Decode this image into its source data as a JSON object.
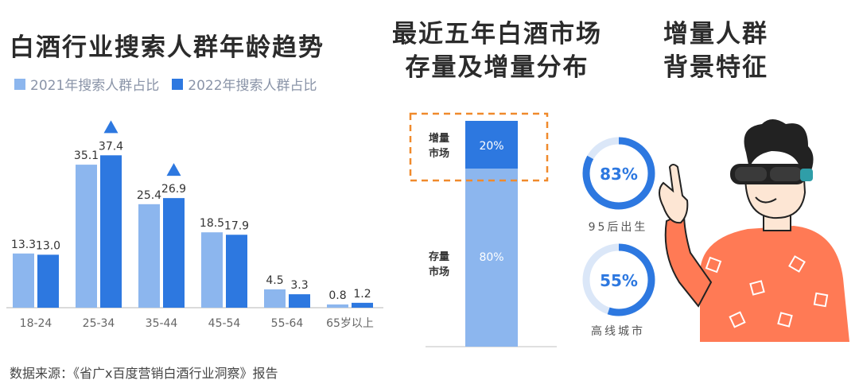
{
  "chart_data": [
    {
      "type": "bar",
      "title": "白酒行业搜索人群年龄趋势",
      "categories": [
        "18-24",
        "25-34",
        "35-44",
        "45-54",
        "55-64",
        "65岁以上"
      ],
      "series": [
        {
          "name": "2021年搜索人群占比",
          "values": [
            13.3,
            35.1,
            25.4,
            18.5,
            4.5,
            0.8
          ],
          "color": "#8cb6ee"
        },
        {
          "name": "2022年搜索人群占比",
          "values": [
            13.0,
            37.4,
            26.9,
            17.9,
            3.3,
            1.2
          ],
          "color": "#2d78e0"
        }
      ],
      "value_labels": [
        [
          "13.3",
          "35.1",
          "25.4",
          "18.5",
          "4.5",
          "0.8"
        ],
        [
          "13.0",
          "37.4",
          "26.9",
          "17.9",
          "3.3",
          "1.2"
        ]
      ],
      "highlight_categories": [
        "25-34",
        "35-44"
      ],
      "ylim": [
        0,
        40
      ],
      "grid": false
    },
    {
      "type": "bar",
      "title": "最近五年白酒市场存量及增量分布",
      "stacked": true,
      "segments": [
        {
          "name": "存量市场",
          "value": 80,
          "label": "80%",
          "color": "#8cb6ee"
        },
        {
          "name": "增量市场",
          "value": 20,
          "label": "20%",
          "color": "#2d78e0"
        }
      ]
    }
  ],
  "titles": {
    "main": "白酒行业搜索人群年龄趋势",
    "middle_line1": "最近五年白酒",
    "middle_line2": "市场",
    "middle_line3": "存量及增量分布",
    "right_line1": "增量人群",
    "right_line2": "背景特征"
  },
  "legend": {
    "item1": "2021年搜索人群占比",
    "item2": "2022年搜索人群占比"
  },
  "stack_labels": {
    "increment_1": "增量",
    "increment_2": "市场",
    "stock_1": "存量",
    "stock_2": "市场"
  },
  "rings": [
    {
      "value": 83,
      "label": "83%",
      "caption": "95后出生",
      "color": "#2d78e0",
      "track": "#dbe7f8"
    },
    {
      "value": 55,
      "label": "55%",
      "caption": "高线城市",
      "color": "#2d78e0",
      "track": "#dbe7f8"
    }
  ],
  "source": "数据来源：《省广x百度营销白酒行业洞察》报告",
  "colors": {
    "light_blue": "#8cb6ee",
    "dark_blue": "#2d78e0",
    "highlight_box": "#f08a2c",
    "shirt": "#ff7a55"
  }
}
